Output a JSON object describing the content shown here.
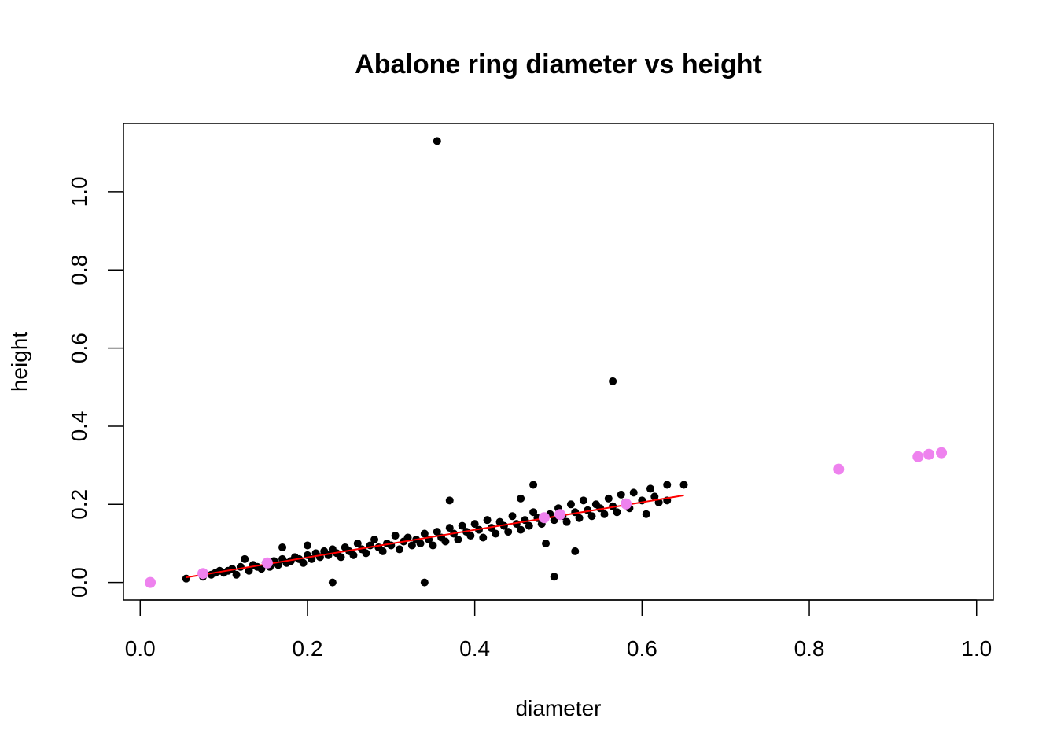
{
  "chart_data": {
    "type": "scatter",
    "title": "Abalone ring diameter vs height",
    "xlabel": "diameter",
    "ylabel": "height",
    "xlim": [
      -0.02,
      1.02
    ],
    "ylim": [
      -0.045,
      1.175
    ],
    "xticks": [
      0.0,
      0.2,
      0.4,
      0.6,
      0.8,
      1.0
    ],
    "yticks": [
      0.0,
      0.2,
      0.4,
      0.6,
      0.8,
      1.0
    ],
    "xtick_labels": [
      "0.0",
      "0.2",
      "0.4",
      "0.6",
      "0.8",
      "1.0"
    ],
    "ytick_labels": [
      "0.0",
      "0.2",
      "0.4",
      "0.6",
      "0.8",
      "1.0"
    ],
    "grid": false,
    "legend": "none",
    "series": [
      {
        "kind": "scatter",
        "color": "#000000",
        "points": [
          [
            0.055,
            0.01
          ],
          [
            0.075,
            0.015
          ],
          [
            0.085,
            0.02
          ],
          [
            0.09,
            0.025
          ],
          [
            0.095,
            0.03
          ],
          [
            0.1,
            0.025
          ],
          [
            0.105,
            0.03
          ],
          [
            0.11,
            0.035
          ],
          [
            0.115,
            0.02
          ],
          [
            0.12,
            0.04
          ],
          [
            0.125,
            0.06
          ],
          [
            0.13,
            0.03
          ],
          [
            0.135,
            0.045
          ],
          [
            0.14,
            0.04
          ],
          [
            0.145,
            0.035
          ],
          [
            0.15,
            0.05
          ],
          [
            0.155,
            0.04
          ],
          [
            0.16,
            0.055
          ],
          [
            0.165,
            0.045
          ],
          [
            0.17,
            0.06
          ],
          [
            0.175,
            0.05
          ],
          [
            0.17,
            0.09
          ],
          [
            0.18,
            0.055
          ],
          [
            0.185,
            0.065
          ],
          [
            0.19,
            0.06
          ],
          [
            0.195,
            0.05
          ],
          [
            0.2,
            0.07
          ],
          [
            0.2,
            0.095
          ],
          [
            0.205,
            0.06
          ],
          [
            0.21,
            0.075
          ],
          [
            0.215,
            0.065
          ],
          [
            0.22,
            0.08
          ],
          [
            0.225,
            0.07
          ],
          [
            0.23,
            0.0
          ],
          [
            0.23,
            0.085
          ],
          [
            0.235,
            0.075
          ],
          [
            0.24,
            0.065
          ],
          [
            0.245,
            0.09
          ],
          [
            0.25,
            0.08
          ],
          [
            0.255,
            0.07
          ],
          [
            0.26,
            0.1
          ],
          [
            0.265,
            0.085
          ],
          [
            0.27,
            0.075
          ],
          [
            0.275,
            0.095
          ],
          [
            0.28,
            0.11
          ],
          [
            0.285,
            0.09
          ],
          [
            0.29,
            0.08
          ],
          [
            0.295,
            0.1
          ],
          [
            0.3,
            0.095
          ],
          [
            0.305,
            0.12
          ],
          [
            0.31,
            0.085
          ],
          [
            0.315,
            0.105
          ],
          [
            0.32,
            0.115
          ],
          [
            0.325,
            0.095
          ],
          [
            0.33,
            0.11
          ],
          [
            0.335,
            0.1
          ],
          [
            0.34,
            0.0
          ],
          [
            0.34,
            0.125
          ],
          [
            0.345,
            0.11
          ],
          [
            0.35,
            0.095
          ],
          [
            0.355,
            1.13
          ],
          [
            0.355,
            0.13
          ],
          [
            0.36,
            0.115
          ],
          [
            0.365,
            0.105
          ],
          [
            0.37,
            0.14
          ],
          [
            0.37,
            0.21
          ],
          [
            0.375,
            0.125
          ],
          [
            0.38,
            0.11
          ],
          [
            0.385,
            0.145
          ],
          [
            0.39,
            0.13
          ],
          [
            0.395,
            0.12
          ],
          [
            0.4,
            0.15
          ],
          [
            0.405,
            0.135
          ],
          [
            0.41,
            0.115
          ],
          [
            0.415,
            0.16
          ],
          [
            0.42,
            0.14
          ],
          [
            0.425,
            0.125
          ],
          [
            0.43,
            0.155
          ],
          [
            0.435,
            0.145
          ],
          [
            0.44,
            0.13
          ],
          [
            0.445,
            0.17
          ],
          [
            0.45,
            0.15
          ],
          [
            0.455,
            0.135
          ],
          [
            0.455,
            0.215
          ],
          [
            0.46,
            0.16
          ],
          [
            0.465,
            0.145
          ],
          [
            0.47,
            0.18
          ],
          [
            0.47,
            0.25
          ],
          [
            0.475,
            0.165
          ],
          [
            0.48,
            0.15
          ],
          [
            0.485,
            0.1
          ],
          [
            0.49,
            0.175
          ],
          [
            0.495,
            0.015
          ],
          [
            0.495,
            0.16
          ],
          [
            0.5,
            0.19
          ],
          [
            0.505,
            0.17
          ],
          [
            0.51,
            0.155
          ],
          [
            0.515,
            0.2
          ],
          [
            0.52,
            0.08
          ],
          [
            0.52,
            0.18
          ],
          [
            0.525,
            0.165
          ],
          [
            0.53,
            0.21
          ],
          [
            0.535,
            0.185
          ],
          [
            0.54,
            0.17
          ],
          [
            0.545,
            0.2
          ],
          [
            0.55,
            0.19
          ],
          [
            0.555,
            0.175
          ],
          [
            0.56,
            0.215
          ],
          [
            0.565,
            0.515
          ],
          [
            0.565,
            0.195
          ],
          [
            0.57,
            0.18
          ],
          [
            0.575,
            0.225
          ],
          [
            0.58,
            0.205
          ],
          [
            0.585,
            0.19
          ],
          [
            0.59,
            0.23
          ],
          [
            0.6,
            0.21
          ],
          [
            0.605,
            0.175
          ],
          [
            0.61,
            0.24
          ],
          [
            0.615,
            0.22
          ],
          [
            0.62,
            0.205
          ],
          [
            0.63,
            0.25
          ],
          [
            0.63,
            0.21
          ],
          [
            0.65,
            0.25
          ]
        ]
      },
      {
        "kind": "line",
        "color": "#ff0000",
        "points": [
          [
            0.055,
            0.013
          ],
          [
            0.65,
            0.223
          ]
        ]
      },
      {
        "kind": "scatter",
        "color": "#ee82ee",
        "points": [
          [
            0.012,
            0.0
          ],
          [
            0.075,
            0.023
          ],
          [
            0.152,
            0.05
          ],
          [
            0.483,
            0.166
          ],
          [
            0.502,
            0.174
          ],
          [
            0.581,
            0.201
          ],
          [
            0.835,
            0.29
          ],
          [
            0.93,
            0.322
          ],
          [
            0.943,
            0.328
          ],
          [
            0.958,
            0.332
          ]
        ]
      }
    ]
  }
}
